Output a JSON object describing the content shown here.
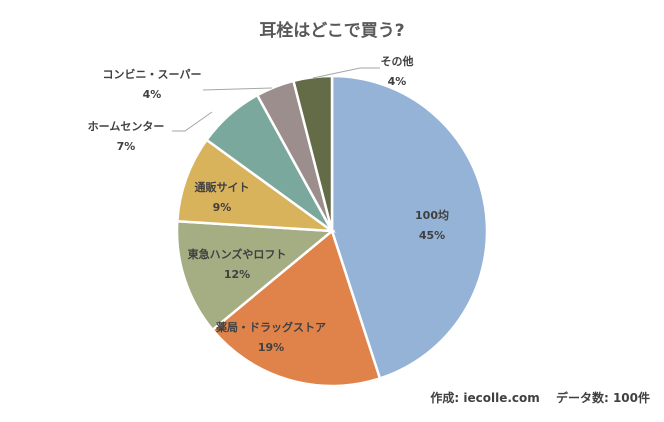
{
  "chart_data": {
    "type": "pie",
    "title": "耳栓はどこで買う?",
    "categories": [
      "100均",
      "薬局・ドラッグストア",
      "東急ハンズやロフト",
      "通販サイト",
      "ホームセンター",
      "コンビニ・スーパー",
      "その他"
    ],
    "values": [
      45,
      19,
      12,
      9,
      7,
      4,
      4
    ],
    "data_labels": [
      "45%",
      "19%",
      "12%",
      "9%",
      "7%",
      "4%",
      "4%"
    ],
    "colors": [
      "#95B3D7",
      "#E0834A",
      "#A5AD83",
      "#D9B25C",
      "#7BA89C",
      "#9B8E8C",
      "#636B47"
    ],
    "start_angle": "top, clockwise",
    "legend": "none"
  },
  "source": "作成: iecolle.com　 データ数: 100件"
}
